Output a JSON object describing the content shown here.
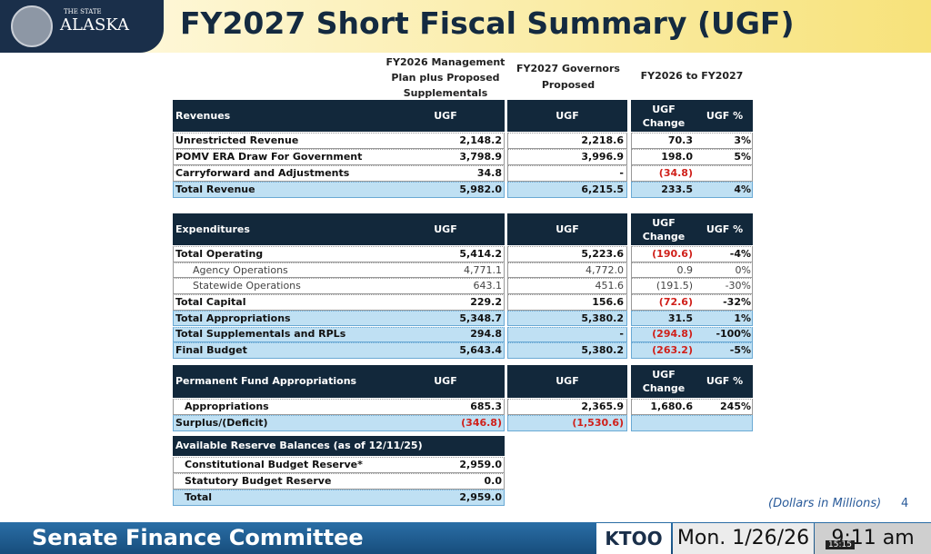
{
  "header": {
    "logo_small": "THE STATE",
    "logo_name": "ALASKA",
    "title": "FY2027 Short Fiscal Summary (UGF)"
  },
  "column_headers": [
    "FY2026 Management Plan plus Proposed Supplementals",
    "FY2027 Governors Proposed",
    "FY2026 to FY2027"
  ],
  "sections": [
    {
      "header": [
        "Revenues",
        "UGF",
        "UGF",
        "UGF Change",
        "UGF %"
      ],
      "rows": [
        [
          "Unrestricted Revenue",
          "2,148.2",
          "2,218.6",
          "70.3",
          "3%"
        ],
        [
          "POMV ERA Draw For Government",
          "3,798.9",
          "3,996.9",
          "198.0",
          "5%"
        ],
        [
          "Carryforward and Adjustments",
          "34.8",
          "-",
          "(34.8)",
          null
        ],
        [
          "Total Revenue",
          "5,982.0",
          "6,215.5",
          "233.5",
          "4%"
        ]
      ]
    },
    {
      "header": [
        "Expenditures",
        "UGF",
        "UGF",
        "UGF Change",
        "UGF %"
      ],
      "rows": [
        [
          "Total Operating",
          "5,414.2",
          "5,223.6",
          "(190.6)",
          "-4%"
        ],
        [
          "Agency Operations",
          "4,771.1",
          "4,772.0",
          "0.9",
          "0%"
        ],
        [
          "Statewide Operations",
          "643.1",
          "451.6",
          "(191.5)",
          "-30%"
        ],
        [
          "Total Capital",
          "229.2",
          "156.6",
          "(72.6)",
          "-32%"
        ],
        [
          "Total Appropriations",
          "5,348.7",
          "5,380.2",
          "31.5",
          "1%"
        ],
        [
          "Total Supplementals and RPLs",
          "294.8",
          "-",
          "(294.8)",
          "-100%"
        ],
        [
          "Final Budget",
          "5,643.4",
          "5,380.2",
          "(263.2)",
          "-5%"
        ]
      ]
    },
    {
      "header": [
        "Permanent Fund Appropriations",
        "UGF",
        "UGF",
        "UGF Change",
        "UGF %"
      ],
      "rows": [
        [
          "Appropriations",
          "685.3",
          "2,365.9",
          "1,680.6",
          "245%"
        ],
        [
          "Surplus/(Deficit)",
          "(346.8)",
          "(1,530.6)",
          null,
          null
        ]
      ]
    },
    {
      "header": [
        "Available Reserve Balances (as of 12/11/25)"
      ],
      "rows": [
        [
          "Constitutional Budget Reserve*",
          "2,959.0"
        ],
        [
          "Statutory Budget Reserve",
          "0.0"
        ],
        [
          "Total",
          "2,959.0"
        ]
      ]
    }
  ],
  "footer": {
    "units": "(Dollars in Millions)",
    "page": "4"
  },
  "broadcast": {
    "committee": "Senate Finance Committee",
    "station": "KTOO",
    "date": "Mon. 1/26/26",
    "time": "9:11 am",
    "clip_time": "15:15"
  }
}
